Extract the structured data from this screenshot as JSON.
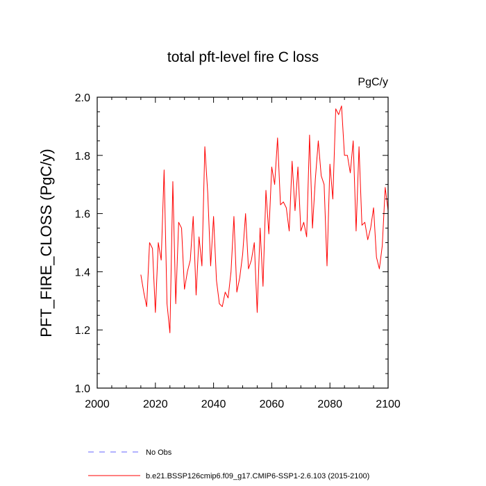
{
  "chart_data": {
    "type": "line",
    "title": "total pft-level fire C loss",
    "units": "PgC/y",
    "ylabel": "PFT_FIRE_CLOSS  (PgC/y)",
    "xlabel": "",
    "xlim": [
      2000,
      2100
    ],
    "ylim": [
      1.0,
      2.0
    ],
    "x_ticks": [
      2000,
      2020,
      2040,
      2060,
      2080,
      2100
    ],
    "y_ticks": [
      1.0,
      1.2,
      1.4,
      1.6,
      1.8,
      2.0
    ],
    "x_tick_labels": [
      "2000",
      "2020",
      "2040",
      "2060",
      "2080",
      "2100"
    ],
    "y_tick_labels": [
      "1.0",
      "1.2",
      "1.4",
      "1.6",
      "1.8",
      "2.0"
    ],
    "grid": false,
    "series": [
      {
        "name": "b.e21.BSSP126cmip6.f09_g17.CMIP6-SSP1-2.6.103 (2015-2100)",
        "color": "#ff0000",
        "style": "solid",
        "x": [
          2015,
          2016,
          2017,
          2018,
          2019,
          2020,
          2021,
          2022,
          2023,
          2024,
          2025,
          2026,
          2027,
          2028,
          2029,
          2030,
          2031,
          2032,
          2033,
          2034,
          2035,
          2036,
          2037,
          2038,
          2039,
          2040,
          2041,
          2042,
          2043,
          2044,
          2045,
          2046,
          2047,
          2048,
          2049,
          2050,
          2051,
          2052,
          2053,
          2054,
          2055,
          2056,
          2057,
          2058,
          2059,
          2060,
          2061,
          2062,
          2063,
          2064,
          2065,
          2066,
          2067,
          2068,
          2069,
          2070,
          2071,
          2072,
          2073,
          2074,
          2075,
          2076,
          2077,
          2078,
          2079,
          2080,
          2081,
          2082,
          2083,
          2084,
          2085,
          2086,
          2087,
          2088,
          2089,
          2090,
          2091,
          2092,
          2093,
          2094,
          2095,
          2096,
          2097,
          2098,
          2099,
          2100
        ],
        "values": [
          1.39,
          1.33,
          1.28,
          1.5,
          1.48,
          1.26,
          1.5,
          1.44,
          1.75,
          1.29,
          1.19,
          1.71,
          1.29,
          1.57,
          1.55,
          1.34,
          1.4,
          1.44,
          1.59,
          1.32,
          1.52,
          1.42,
          1.83,
          1.67,
          1.42,
          1.59,
          1.37,
          1.29,
          1.28,
          1.33,
          1.31,
          1.4,
          1.59,
          1.33,
          1.38,
          1.46,
          1.6,
          1.41,
          1.44,
          1.5,
          1.26,
          1.55,
          1.35,
          1.68,
          1.53,
          1.76,
          1.7,
          1.86,
          1.63,
          1.64,
          1.62,
          1.54,
          1.78,
          1.61,
          1.76,
          1.54,
          1.57,
          1.52,
          1.87,
          1.55,
          1.72,
          1.85,
          1.73,
          1.7,
          1.42,
          1.77,
          1.65,
          1.96,
          1.94,
          1.97,
          1.8,
          1.8,
          1.74,
          1.85,
          1.54,
          1.83,
          1.56,
          1.57,
          1.51,
          1.55,
          1.62,
          1.45,
          1.41,
          1.49,
          1.69,
          1.61
        ]
      }
    ],
    "legend": [
      {
        "label": "No Obs",
        "color": "#6666ff",
        "style": "dashed"
      },
      {
        "label": "b.e21.BSSP126cmip6.f09_g17.CMIP6-SSP1-2.6.103 (2015-2100)",
        "color": "#ff0000",
        "style": "solid"
      }
    ]
  }
}
